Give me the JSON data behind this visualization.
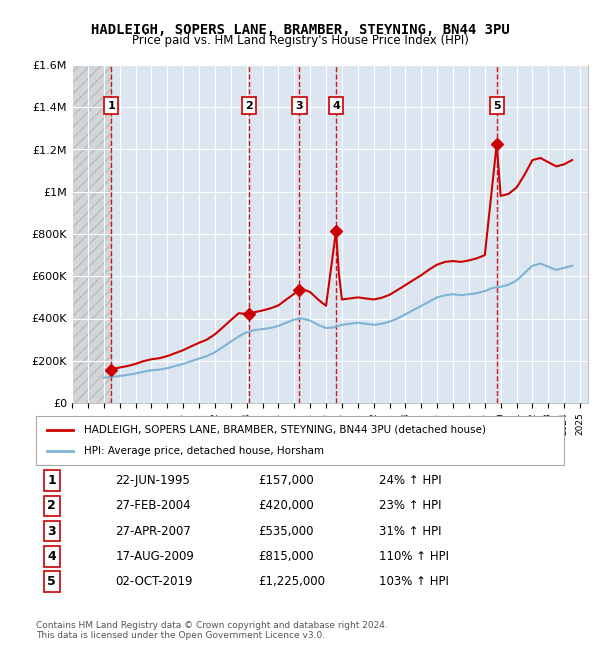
{
  "title": "HADLEIGH, SOPERS LANE, BRAMBER, STEYNING, BN44 3PU",
  "subtitle": "Price paid vs. HM Land Registry's House Price Index (HPI)",
  "footer": "Contains HM Land Registry data © Crown copyright and database right 2024.\nThis data is licensed under the Open Government Licence v3.0.",
  "legend_line1": "HADLEIGH, SOPERS LANE, BRAMBER, STEYNING, BN44 3PU (detached house)",
  "legend_line2": "HPI: Average price, detached house, Horsham",
  "ylim": [
    0,
    1600000
  ],
  "yticks": [
    0,
    200000,
    400000,
    600000,
    800000,
    1000000,
    1200000,
    1400000,
    1600000
  ],
  "ytick_labels": [
    "£0",
    "£200K",
    "£400K",
    "£600K",
    "£800K",
    "£1M",
    "£1.2M",
    "£1.4M",
    "£1.6M"
  ],
  "xlim_start": 1993.0,
  "xlim_end": 2025.5,
  "hatch_end": 1995.5,
  "plot_bg_color": "#dce6f1",
  "hatch_color": "#c0c0c0",
  "grid_color": "#ffffff",
  "red_line_color": "#cc0000",
  "blue_line_color": "#7fb3d3",
  "transactions": [
    {
      "id": 1,
      "date": "22-JUN-1995",
      "year": 1995.47,
      "price": 157000,
      "pct": "24%",
      "label": "1"
    },
    {
      "id": 2,
      "date": "27-FEB-2004",
      "year": 2004.16,
      "price": 420000,
      "pct": "23%",
      "label": "2"
    },
    {
      "id": 3,
      "date": "27-APR-2007",
      "year": 2007.32,
      "price": 535000,
      "pct": "31%",
      "label": "3"
    },
    {
      "id": 4,
      "date": "17-AUG-2009",
      "year": 2009.63,
      "price": 815000,
      "pct": "110%",
      "label": "4"
    },
    {
      "id": 5,
      "date": "02-OCT-2019",
      "year": 2019.75,
      "price": 1225000,
      "pct": "103%",
      "label": "5"
    }
  ],
  "hpi_data": {
    "years": [
      1995.0,
      1995.5,
      1996.0,
      1996.5,
      1997.0,
      1997.5,
      1998.0,
      1998.5,
      1999.0,
      1999.5,
      2000.0,
      2000.5,
      2001.0,
      2001.5,
      2002.0,
      2002.5,
      2003.0,
      2003.5,
      2004.0,
      2004.5,
      2005.0,
      2005.5,
      2006.0,
      2006.5,
      2007.0,
      2007.5,
      2008.0,
      2008.5,
      2009.0,
      2009.5,
      2010.0,
      2010.5,
      2011.0,
      2011.5,
      2012.0,
      2012.5,
      2013.0,
      2013.5,
      2014.0,
      2014.5,
      2015.0,
      2015.5,
      2016.0,
      2016.5,
      2017.0,
      2017.5,
      2018.0,
      2018.5,
      2019.0,
      2019.5,
      2020.0,
      2020.5,
      2021.0,
      2021.5,
      2022.0,
      2022.5,
      2023.0,
      2023.5,
      2024.0,
      2024.5
    ],
    "values": [
      120000,
      123000,
      128000,
      133000,
      140000,
      148000,
      155000,
      158000,
      165000,
      175000,
      185000,
      198000,
      210000,
      222000,
      240000,
      265000,
      290000,
      315000,
      335000,
      345000,
      350000,
      355000,
      365000,
      380000,
      395000,
      400000,
      390000,
      370000,
      355000,
      358000,
      370000,
      375000,
      380000,
      375000,
      370000,
      375000,
      385000,
      400000,
      420000,
      440000,
      460000,
      480000,
      500000,
      510000,
      515000,
      510000,
      515000,
      520000,
      530000,
      545000,
      550000,
      560000,
      580000,
      615000,
      650000,
      660000,
      645000,
      630000,
      640000,
      650000
    ]
  },
  "price_data": {
    "years": [
      1995.47,
      1995.5,
      1996.0,
      1996.5,
      1997.0,
      1997.5,
      1998.0,
      1998.5,
      1999.0,
      1999.5,
      2000.0,
      2000.5,
      2001.0,
      2001.5,
      2002.0,
      2002.5,
      2003.0,
      2003.5,
      2004.16,
      2004.5,
      2005.0,
      2005.5,
      2006.0,
      2006.5,
      2007.32,
      2007.5,
      2008.0,
      2008.5,
      2009.0,
      2009.63,
      2009.8,
      2010.0,
      2010.5,
      2011.0,
      2011.5,
      2012.0,
      2012.5,
      2013.0,
      2013.5,
      2014.0,
      2014.5,
      2015.0,
      2015.5,
      2016.0,
      2016.5,
      2017.0,
      2017.5,
      2018.0,
      2018.5,
      2019.0,
      2019.75,
      2020.0,
      2020.5,
      2021.0,
      2021.5,
      2022.0,
      2022.5,
      2023.0,
      2023.5,
      2024.0,
      2024.5
    ],
    "values": [
      157000,
      160000,
      168000,
      175000,
      185000,
      198000,
      207000,
      212000,
      222000,
      236000,
      250000,
      268000,
      285000,
      300000,
      325000,
      358000,
      392000,
      425000,
      420000,
      430000,
      438000,
      448000,
      462000,
      490000,
      535000,
      540000,
      525000,
      490000,
      460000,
      815000,
      620000,
      490000,
      495000,
      500000,
      495000,
      490000,
      498000,
      512000,
      535000,
      558000,
      582000,
      605000,
      632000,
      655000,
      668000,
      672000,
      668000,
      675000,
      685000,
      700000,
      1225000,
      980000,
      990000,
      1020000,
      1080000,
      1150000,
      1160000,
      1140000,
      1120000,
      1130000,
      1150000
    ]
  }
}
